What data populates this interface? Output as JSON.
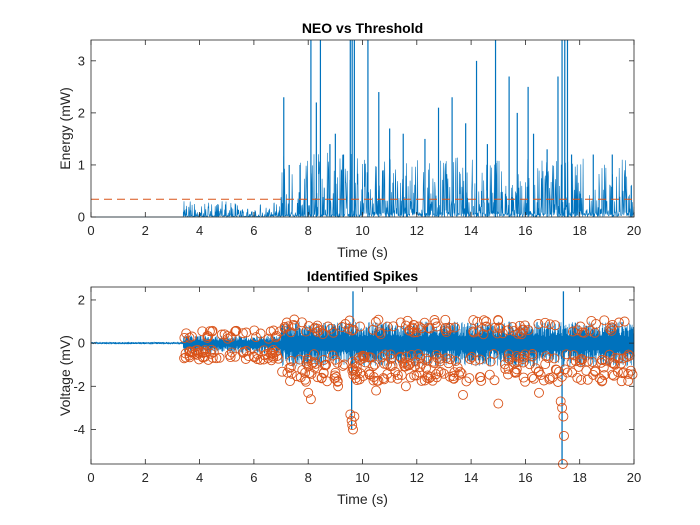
{
  "chart_data": [
    {
      "type": "line",
      "title": "NEO vs Threshold",
      "xlabel": "Time (s)",
      "ylabel": "Energy (mW)",
      "xlim": [
        0,
        20
      ],
      "ylim": [
        0,
        3.4
      ],
      "xticks": [
        0,
        2,
        4,
        6,
        8,
        10,
        12,
        14,
        16,
        18,
        20
      ],
      "yticks": [
        0,
        1,
        2,
        3
      ],
      "xtick_labels": [
        "0",
        "2",
        "4",
        "6",
        "8",
        "10",
        "12",
        "14",
        "16",
        "18",
        "20"
      ],
      "ytick_labels": [
        "0",
        "1",
        "2",
        "3"
      ],
      "grid": false,
      "series": [
        {
          "kind": "energy-trace",
          "color": "#0072BD",
          "segments": [
            {
              "x_range": [
                0,
                3.4
              ],
              "baseline": 0.0,
              "typical_peak": 0.0
            },
            {
              "x_range": [
                3.4,
                7.0
              ],
              "baseline": 0.02,
              "typical_peak": 0.3
            },
            {
              "x_range": [
                7.0,
                10.0
              ],
              "baseline": 0.05,
              "typical_peak": 1.2
            },
            {
              "x_range": [
                10.0,
                20.0
              ],
              "baseline": 0.08,
              "typical_peak": 1.1
            }
          ],
          "large_peaks": [
            {
              "x": 7.1,
              "y": 2.3
            },
            {
              "x": 7.3,
              "y": 1.0
            },
            {
              "x": 7.7,
              "y": 1.0
            },
            {
              "x": 8.1,
              "y": 3.4
            },
            {
              "x": 8.3,
              "y": 2.2
            },
            {
              "x": 8.45,
              "y": 3.4
            },
            {
              "x": 8.8,
              "y": 1.4
            },
            {
              "x": 9.0,
              "y": 1.6
            },
            {
              "x": 9.3,
              "y": 1.2
            },
            {
              "x": 9.55,
              "y": 3.4
            },
            {
              "x": 9.62,
              "y": 3.4
            },
            {
              "x": 9.7,
              "y": 3.4
            },
            {
              "x": 10.2,
              "y": 3.4
            },
            {
              "x": 10.6,
              "y": 2.4
            },
            {
              "x": 11.0,
              "y": 1.7
            },
            {
              "x": 11.5,
              "y": 1.6
            },
            {
              "x": 12.3,
              "y": 1.5
            },
            {
              "x": 12.8,
              "y": 2.1
            },
            {
              "x": 13.3,
              "y": 2.3
            },
            {
              "x": 13.8,
              "y": 1.8
            },
            {
              "x": 14.2,
              "y": 3.0
            },
            {
              "x": 14.6,
              "y": 1.4
            },
            {
              "x": 14.9,
              "y": 3.4
            },
            {
              "x": 15.4,
              "y": 2.7
            },
            {
              "x": 15.7,
              "y": 2.0
            },
            {
              "x": 16.1,
              "y": 2.5
            },
            {
              "x": 16.3,
              "y": 1.6
            },
            {
              "x": 16.8,
              "y": 1.3
            },
            {
              "x": 17.2,
              "y": 2.7
            },
            {
              "x": 17.35,
              "y": 3.4
            },
            {
              "x": 17.45,
              "y": 3.4
            },
            {
              "x": 17.55,
              "y": 3.4
            },
            {
              "x": 17.7,
              "y": 1.2
            },
            {
              "x": 18.5,
              "y": 1.2
            },
            {
              "x": 19.2,
              "y": 1.2
            },
            {
              "x": 19.9,
              "y": 0.6
            }
          ]
        },
        {
          "kind": "threshold",
          "color": "#D95319",
          "style": "dashed",
          "y": 0.34
        }
      ]
    },
    {
      "type": "line",
      "title": "Identified Spikes",
      "xlabel": "Time (s)",
      "ylabel": "Voltage (mV)",
      "xlim": [
        0,
        20
      ],
      "ylim": [
        -5.6,
        2.6
      ],
      "xticks": [
        0,
        2,
        4,
        6,
        8,
        10,
        12,
        14,
        16,
        18,
        20
      ],
      "yticks": [
        -4,
        -2,
        0,
        2
      ],
      "xtick_labels": [
        "0",
        "2",
        "4",
        "6",
        "8",
        "10",
        "12",
        "14",
        "16",
        "18",
        "20"
      ],
      "ytick_labels": [
        "-4",
        "-2",
        "0",
        "2"
      ],
      "grid": false,
      "series": [
        {
          "kind": "voltage-trace",
          "color": "#0072BD",
          "segments": [
            {
              "x_range": [
                0,
                3.4
              ],
              "upper": 0.05,
              "lower": -0.05
            },
            {
              "x_range": [
                3.4,
                7.0
              ],
              "upper": 0.35,
              "lower": -0.5
            },
            {
              "x_range": [
                7.0,
                20.0
              ],
              "upper": 1.0,
              "lower": -1.1
            }
          ],
          "large_peaks": [
            {
              "x": 9.65,
              "y": 2.4
            },
            {
              "x": 9.6,
              "y": -4.0
            },
            {
              "x": 17.4,
              "y": 2.4
            },
            {
              "x": 17.35,
              "y": -5.6
            }
          ]
        },
        {
          "kind": "spike-markers",
          "marker": "circle",
          "color": "#D95319",
          "segments": [
            {
              "x_range": [
                3.4,
                7.0
              ],
              "count": 90,
              "bands": [
                [
                  0.2,
                  0.6
                ],
                [
                  -0.8,
                  -0.3
                ]
              ]
            },
            {
              "x_range": [
                7.0,
                20.0
              ],
              "count": 360,
              "bands": [
                [
                  0.4,
                  1.1
                ],
                [
                  -1.8,
                  -0.5
                ]
              ]
            }
          ],
          "outliers": [
            {
              "x": 8.1,
              "y": -2.6
            },
            {
              "x": 8.0,
              "y": -2.3
            },
            {
              "x": 8.5,
              "y": -1.6
            },
            {
              "x": 9.1,
              "y": -2.0
            },
            {
              "x": 9.55,
              "y": -3.3
            },
            {
              "x": 9.6,
              "y": -3.6
            },
            {
              "x": 9.62,
              "y": -3.8
            },
            {
              "x": 9.65,
              "y": -4.0
            },
            {
              "x": 9.7,
              "y": -3.4
            },
            {
              "x": 10.5,
              "y": -2.2
            },
            {
              "x": 11.6,
              "y": -2.0
            },
            {
              "x": 13.7,
              "y": -2.4
            },
            {
              "x": 15.0,
              "y": -2.8
            },
            {
              "x": 16.5,
              "y": -2.3
            },
            {
              "x": 17.2,
              "y": -1.8
            },
            {
              "x": 17.3,
              "y": -2.7
            },
            {
              "x": 17.35,
              "y": -3.0
            },
            {
              "x": 17.4,
              "y": -3.4
            },
            {
              "x": 17.42,
              "y": -4.3
            },
            {
              "x": 17.38,
              "y": -5.6
            },
            {
              "x": 18.3,
              "y": -1.7
            },
            {
              "x": 19.3,
              "y": -1.0
            }
          ]
        }
      ]
    }
  ]
}
